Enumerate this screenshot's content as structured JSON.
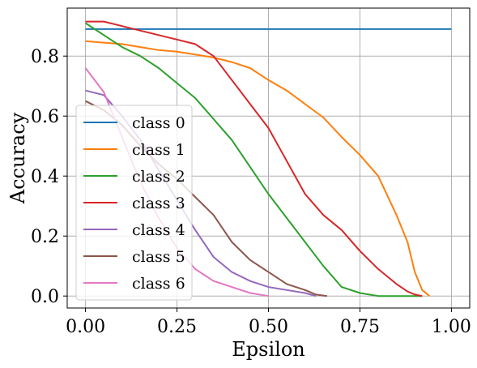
{
  "chart_data": {
    "type": "line",
    "title": "",
    "xlabel": "Epsilon",
    "ylabel": "Accuracy",
    "xlim": [
      -0.05,
      1.05
    ],
    "ylim": [
      -0.04,
      0.96
    ],
    "xticks": [
      0.0,
      0.25,
      0.5,
      0.75,
      1.0
    ],
    "xtick_labels": [
      "0.00",
      "0.25",
      "0.50",
      "0.75",
      "1.00"
    ],
    "yticks": [
      0.0,
      0.2,
      0.4,
      0.6,
      0.8
    ],
    "ytick_labels": [
      "0.0",
      "0.2",
      "0.4",
      "0.6",
      "0.8"
    ],
    "grid": true,
    "legend_position": "lower-left",
    "series": [
      {
        "name": "class 0",
        "color": "#1f77b4",
        "x": [
          0.0,
          1.0
        ],
        "y": [
          0.89,
          0.89
        ]
      },
      {
        "name": "class 1",
        "color": "#ff7f0e",
        "x": [
          0.0,
          0.05,
          0.1,
          0.15,
          0.2,
          0.25,
          0.3,
          0.35,
          0.4,
          0.45,
          0.5,
          0.55,
          0.6,
          0.65,
          0.7,
          0.75,
          0.8,
          0.85,
          0.88,
          0.9,
          0.92,
          0.94
        ],
        "y": [
          0.85,
          0.845,
          0.84,
          0.83,
          0.82,
          0.815,
          0.805,
          0.795,
          0.78,
          0.76,
          0.72,
          0.685,
          0.64,
          0.595,
          0.53,
          0.47,
          0.4,
          0.27,
          0.18,
          0.08,
          0.02,
          0.0
        ]
      },
      {
        "name": "class 2",
        "color": "#2ca02c",
        "x": [
          0.0,
          0.05,
          0.1,
          0.15,
          0.2,
          0.25,
          0.3,
          0.35,
          0.4,
          0.45,
          0.5,
          0.55,
          0.6,
          0.65,
          0.7,
          0.75,
          0.8,
          0.85,
          0.9,
          0.92
        ],
        "y": [
          0.91,
          0.87,
          0.83,
          0.8,
          0.76,
          0.71,
          0.66,
          0.59,
          0.52,
          0.43,
          0.34,
          0.26,
          0.18,
          0.1,
          0.03,
          0.01,
          0.0,
          0.0,
          0.0,
          0.0
        ]
      },
      {
        "name": "class 3",
        "color": "#d62728",
        "x": [
          0.0,
          0.05,
          0.1,
          0.15,
          0.2,
          0.25,
          0.3,
          0.35,
          0.4,
          0.45,
          0.5,
          0.55,
          0.6,
          0.65,
          0.7,
          0.75,
          0.8,
          0.85,
          0.88,
          0.9,
          0.92
        ],
        "y": [
          0.915,
          0.915,
          0.9,
          0.885,
          0.87,
          0.855,
          0.84,
          0.8,
          0.72,
          0.64,
          0.56,
          0.45,
          0.34,
          0.27,
          0.22,
          0.15,
          0.09,
          0.04,
          0.015,
          0.005,
          0.0
        ]
      },
      {
        "name": "class 4",
        "color": "#9467bd",
        "x": [
          0.0,
          0.05,
          0.1,
          0.15,
          0.2,
          0.25,
          0.3,
          0.35,
          0.4,
          0.45,
          0.5,
          0.55,
          0.6,
          0.63
        ],
        "y": [
          0.685,
          0.67,
          0.6,
          0.52,
          0.42,
          0.32,
          0.22,
          0.13,
          0.08,
          0.05,
          0.03,
          0.02,
          0.01,
          0.0
        ]
      },
      {
        "name": "class 5",
        "color": "#8c564b",
        "x": [
          0.0,
          0.05,
          0.1,
          0.15,
          0.2,
          0.25,
          0.3,
          0.35,
          0.4,
          0.45,
          0.5,
          0.55,
          0.6,
          0.63,
          0.66
        ],
        "y": [
          0.65,
          0.62,
          0.57,
          0.5,
          0.44,
          0.39,
          0.33,
          0.27,
          0.18,
          0.12,
          0.08,
          0.04,
          0.02,
          0.005,
          0.0
        ]
      },
      {
        "name": "class 6",
        "color": "#e377c2",
        "x": [
          0.0,
          0.05,
          0.1,
          0.15,
          0.2,
          0.25,
          0.3,
          0.35,
          0.4,
          0.45,
          0.5
        ],
        "y": [
          0.76,
          0.68,
          0.53,
          0.38,
          0.26,
          0.16,
          0.09,
          0.05,
          0.03,
          0.01,
          0.0
        ]
      }
    ]
  }
}
